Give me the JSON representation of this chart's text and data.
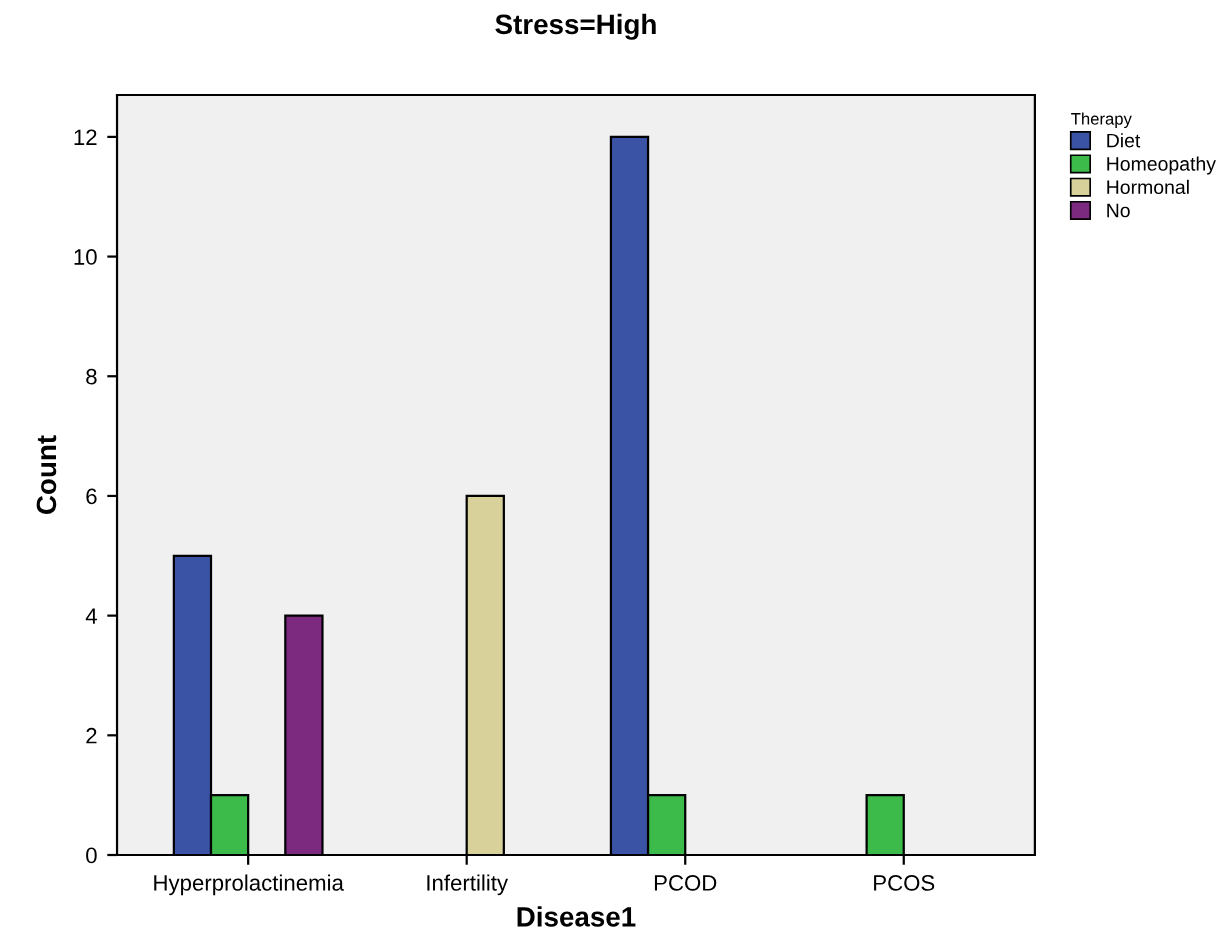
{
  "chart_data": {
    "type": "bar",
    "title": "Stress=High",
    "xlabel": "Disease1",
    "ylabel": "Count",
    "legend_title": "Therapy",
    "categories": [
      "Hyperprolactinemia",
      "Infertility",
      "PCOD",
      "PCOS"
    ],
    "series": [
      {
        "name": "Diet",
        "color": "#3a53a4",
        "values": [
          5,
          null,
          12,
          null
        ]
      },
      {
        "name": "Homeopathy",
        "color": "#3dbb4a",
        "values": [
          1,
          null,
          1,
          1
        ]
      },
      {
        "name": "Hormonal",
        "color": "#d8d19a",
        "values": [
          null,
          6,
          null,
          null
        ]
      },
      {
        "name": "No",
        "color": "#7b2a7f",
        "values": [
          4,
          null,
          null,
          null
        ]
      }
    ],
    "ylim": [
      0,
      12.7
    ],
    "yticks": [
      0,
      2,
      4,
      6,
      8,
      10,
      12
    ],
    "grid": false,
    "legend": "top right"
  }
}
